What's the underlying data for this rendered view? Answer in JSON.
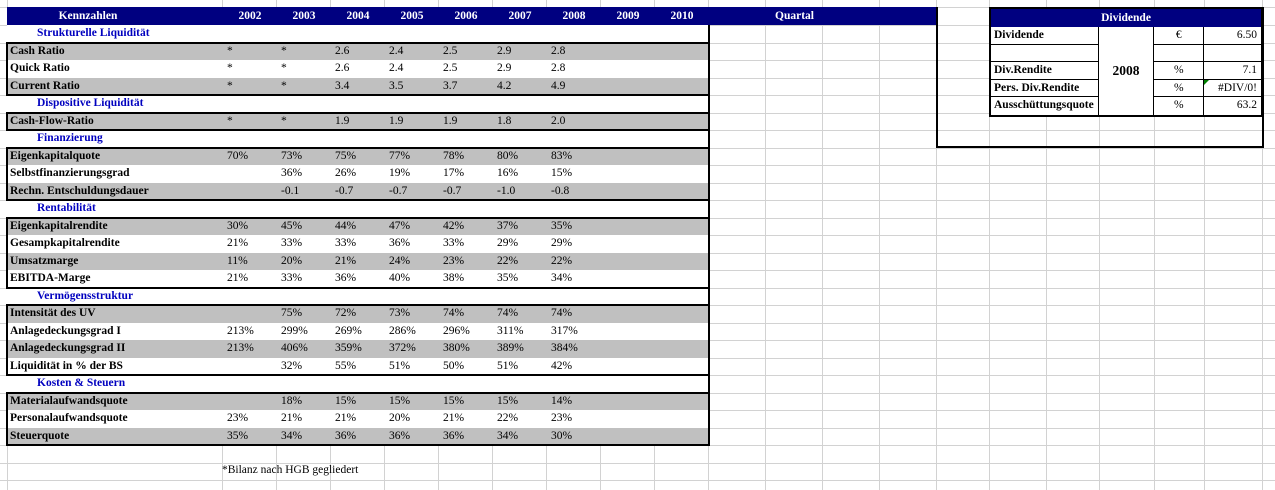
{
  "header": {
    "kennzahlen_label": "Kennzahlen",
    "years": [
      "2002",
      "2003",
      "2004",
      "2005",
      "2006",
      "2007",
      "2008",
      "2009",
      "2010"
    ],
    "quartal_label": "Quartal"
  },
  "table": {
    "rows": [
      {
        "type": "section",
        "label": "Strukturelle Liquidität"
      },
      {
        "type": "data",
        "shade": true,
        "label": "Cash Ratio",
        "values": [
          "*",
          "*",
          "2.6",
          "2.4",
          "2.5",
          "2.9",
          "2.8",
          "",
          ""
        ]
      },
      {
        "type": "data",
        "shade": false,
        "label": "Quick Ratio",
        "values": [
          "*",
          "*",
          "2.6",
          "2.4",
          "2.5",
          "2.9",
          "2.8",
          "",
          ""
        ]
      },
      {
        "type": "data",
        "shade": true,
        "label": "Current Ratio",
        "values": [
          "*",
          "*",
          "3.4",
          "3.5",
          "3.7",
          "4.2",
          "4.9",
          "",
          ""
        ]
      },
      {
        "type": "section",
        "label": "Dispositive Liquidität"
      },
      {
        "type": "data",
        "shade": true,
        "label": "Cash-Flow-Ratio",
        "values": [
          "*",
          "*",
          "1.9",
          "1.9",
          "1.9",
          "1.8",
          "2.0",
          "",
          ""
        ]
      },
      {
        "type": "section",
        "label": "Finanzierung"
      },
      {
        "type": "data",
        "shade": true,
        "label": "Eigenkapitalquote",
        "values": [
          "70%",
          "73%",
          "75%",
          "77%",
          "78%",
          "80%",
          "83%",
          "",
          ""
        ]
      },
      {
        "type": "data",
        "shade": false,
        "label": "Selbstfinanzierungsgrad",
        "values": [
          "",
          "36%",
          "26%",
          "19%",
          "17%",
          "16%",
          "15%",
          "",
          ""
        ]
      },
      {
        "type": "data",
        "shade": true,
        "label": "Rechn. Entschuldungsdauer",
        "values": [
          "",
          "-0.1",
          "-0.7",
          "-0.7",
          "-0.7",
          "-1.0",
          "-0.8",
          "",
          ""
        ]
      },
      {
        "type": "section",
        "label": "Rentabilität"
      },
      {
        "type": "data",
        "shade": true,
        "label": "Eigenkapitalrendite",
        "values": [
          "30%",
          "45%",
          "44%",
          "47%",
          "42%",
          "37%",
          "35%",
          "",
          ""
        ]
      },
      {
        "type": "data",
        "shade": false,
        "label": "Gesampkapitalrendite",
        "values": [
          "21%",
          "33%",
          "33%",
          "36%",
          "33%",
          "29%",
          "29%",
          "",
          ""
        ]
      },
      {
        "type": "data",
        "shade": true,
        "label": "Umsatzmarge",
        "values": [
          "11%",
          "20%",
          "21%",
          "24%",
          "23%",
          "22%",
          "22%",
          "",
          ""
        ]
      },
      {
        "type": "data",
        "shade": false,
        "label": "EBITDA-Marge",
        "values": [
          "21%",
          "33%",
          "36%",
          "40%",
          "38%",
          "35%",
          "34%",
          "",
          ""
        ]
      },
      {
        "type": "section",
        "label": "Vermögensstruktur"
      },
      {
        "type": "data",
        "shade": true,
        "label": "Intensität des UV",
        "values": [
          "",
          "75%",
          "72%",
          "73%",
          "74%",
          "74%",
          "74%",
          "",
          ""
        ]
      },
      {
        "type": "data",
        "shade": false,
        "label": "Anlagedeckungsgrad I",
        "values": [
          "213%",
          "299%",
          "269%",
          "286%",
          "296%",
          "311%",
          "317%",
          "",
          ""
        ]
      },
      {
        "type": "data",
        "shade": true,
        "label": "Anlagedeckungsgrad II",
        "values": [
          "213%",
          "406%",
          "359%",
          "372%",
          "380%",
          "389%",
          "384%",
          "",
          ""
        ]
      },
      {
        "type": "data",
        "shade": false,
        "label": "Liquidität in % der BS",
        "values": [
          "",
          "32%",
          "55%",
          "51%",
          "50%",
          "51%",
          "42%",
          "",
          ""
        ]
      },
      {
        "type": "section",
        "label": "Kosten & Steuern"
      },
      {
        "type": "data",
        "shade": true,
        "label": "Materialaufwandsquote",
        "values": [
          "",
          "18%",
          "15%",
          "15%",
          "15%",
          "15%",
          "14%",
          "",
          ""
        ]
      },
      {
        "type": "data",
        "shade": false,
        "label": "Personalaufwandsquote",
        "values": [
          "23%",
          "21%",
          "21%",
          "20%",
          "21%",
          "22%",
          "23%",
          "",
          ""
        ]
      },
      {
        "type": "data",
        "shade": true,
        "label": "Steuerquote",
        "values": [
          "35%",
          "34%",
          "36%",
          "36%",
          "36%",
          "34%",
          "30%",
          "",
          ""
        ]
      }
    ]
  },
  "footnote": "*Bilanz nach HGB gegliedert",
  "dividende": {
    "title": "Dividende",
    "year": "2008",
    "rows": [
      {
        "label": "Dividende",
        "unit": "€",
        "value": "6.50",
        "error": false
      },
      {
        "label": "",
        "unit": "",
        "value": "",
        "error": false
      },
      {
        "label": "Div.Rendite",
        "unit": "%",
        "value": "7.1",
        "error": false
      },
      {
        "label": "Pers. Div.Rendite",
        "unit": "%",
        "value": "#DIV/0!",
        "error": true
      },
      {
        "label": "Ausschüttungsquote",
        "unit": "%",
        "value": "63.2",
        "error": false
      }
    ]
  },
  "colors": {
    "header_bg": "#000080",
    "section_text": "#0000BF",
    "row_shade": "#C0C0C0",
    "error_indicator": "#008000"
  }
}
